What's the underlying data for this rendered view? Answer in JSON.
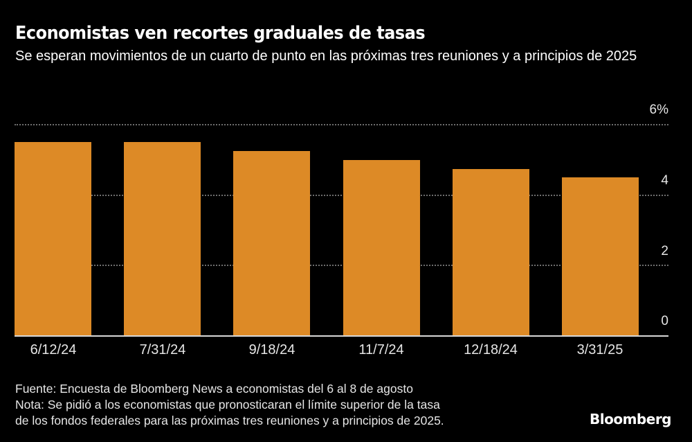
{
  "header": {
    "title": "Economistas ven recortes graduales de tasas",
    "subtitle": "Se esperan movimientos de un cuarto de punto en las próximas tres reuniones y a principios de 2025"
  },
  "footer": {
    "source": "Fuente: Encuesta de Bloomberg News a economistas del 6 al 8 de agosto",
    "note_line1": "Nota: Se pidió a los economistas que pronosticaran el límite superior de la tasa",
    "note_line2": "de los fondos federales para las próximas tres reuniones y a principios de 2025.",
    "brand": "Bloomberg"
  },
  "colors": {
    "bar": "#dd8a26",
    "background": "#000000",
    "grid": "#6e6e6e"
  },
  "chart_data": {
    "type": "bar",
    "title": "Economistas ven recortes graduales de tasas",
    "subtitle": "Se esperan movimientos de un cuarto de punto en las próximas tres reuniones y a principios de 2025",
    "categories": [
      "6/12/24",
      "7/31/24",
      "9/18/24",
      "11/7/24",
      "12/18/24",
      "3/31/25"
    ],
    "values": [
      5.5,
      5.5,
      5.25,
      5.0,
      4.75,
      4.5
    ],
    "xlabel": "",
    "ylabel": "",
    "ylim": [
      0,
      6
    ],
    "yticks": [
      "0",
      "2",
      "4",
      "6%"
    ],
    "grid": true,
    "y_axis_position": "right",
    "legend": null
  }
}
